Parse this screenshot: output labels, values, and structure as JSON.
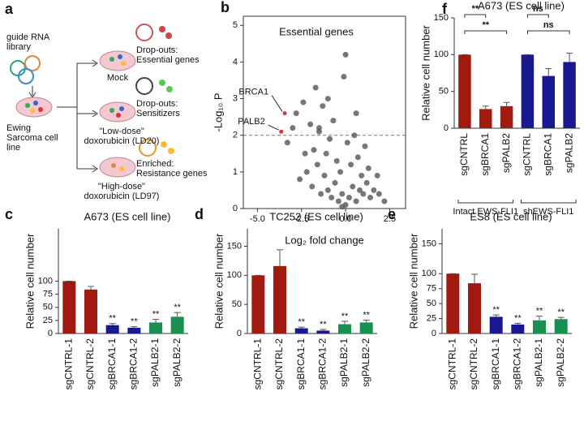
{
  "diagram": {
    "panel": "a",
    "library": "guide RNA library",
    "cell_line": "Ewing Sarcoma cell line",
    "conditions": [
      "Mock",
      "\"Low-dose\" doxorubicin (LD20)",
      "\"High-dose\" doxorubicin (LD97)"
    ],
    "outcomes": [
      "Drop-outs: Essential genes",
      "Drop-outs: Sensitizers",
      "Enriched: Resistance genes"
    ]
  },
  "chart_data": [
    {
      "type": "scatter",
      "panel": "b",
      "title": "Essential genes",
      "xlabel": "Log₂ fold change",
      "ylabel": "-Log₁₀ P",
      "xlim": [
        -5.8,
        3.4
      ],
      "ylim": [
        0,
        5.25
      ],
      "xticks": [
        {
          "value": -5,
          "label": "-5.0"
        },
        {
          "value": -2.5,
          "label": "-2.5"
        },
        {
          "value": 0,
          "label": "0.0"
        },
        {
          "value": 2.5,
          "label": "2.5"
        }
      ],
      "yticks": [
        0,
        1,
        2,
        3,
        4,
        5
      ],
      "hline": 2,
      "series": [
        {
          "color": "#555555",
          "x": [
            -2.6,
            -2.2,
            -1.9,
            -1.6,
            -1.4,
            -1.2,
            -1.0,
            -0.8,
            -0.6,
            -0.4,
            -0.2,
            0,
            0.2,
            0.4,
            0.6,
            0.8,
            1.0,
            1.2,
            1.4,
            1.6,
            1.9,
            2.2,
            -1.8,
            -1.5,
            -1.1,
            -0.9,
            -0.5,
            -0.3,
            0.1,
            0.3,
            0.7,
            0.9,
            1.3,
            -2.0,
            -1.3,
            -0.7,
            0.5,
            1.1,
            -3.0,
            -2.8,
            -2.4,
            -1.7,
            -1.0,
            0.0,
            0.6,
            -0.1,
            -1.5,
            -2.3,
            -3.3,
            1.8,
            -0.2
          ],
          "values": [
            0.8,
            1.0,
            0.6,
            1.2,
            0.4,
            0.9,
            0.5,
            0.3,
            0.7,
            0.2,
            0.4,
            0.1,
            0.3,
            0.6,
            0.2,
            0.5,
            0.4,
            0.7,
            0.3,
            0.5,
            0.4,
            0.2,
            1.6,
            2.1,
            1.5,
            1.9,
            1.3,
            1.0,
            1.8,
            1.2,
            1.4,
            0.9,
            1.1,
            2.3,
            2.8,
            2.4,
            2.0,
            1.7,
            2.2,
            2.6,
            2.9,
            3.3,
            3.0,
            4.2,
            2.6,
            3.6,
            2.2,
            1.5,
            1.8,
            0.9,
            0.05
          ]
        },
        {
          "color": "#e03030",
          "x": [
            -3.45,
            -3.65
          ],
          "values": [
            2.6,
            2.1
          ],
          "point_labels": [
            "BRCA1",
            "PALB2"
          ]
        }
      ]
    },
    {
      "type": "bar",
      "panel": "f",
      "title": "A673 (ES cell line)",
      "ylabel": "Relative cell number",
      "categories": [
        "sgCNTRL",
        "sgBRCA1",
        "sgPALB2",
        "sgCNTRL",
        "sgBRCA1",
        "sgPALB2"
      ],
      "values": [
        100,
        26,
        30,
        100,
        71,
        90
      ],
      "errors": [
        0,
        4,
        5,
        0,
        10,
        12
      ],
      "colors": [
        "#a01a10",
        "#a01a10",
        "#a01a10",
        "#1a1a90",
        "#1a1a90",
        "#1a1a90"
      ],
      "ylim": [
        0,
        150
      ],
      "yticks": [
        0,
        50,
        100,
        150
      ],
      "comparisons": [
        {
          "pair": [
            0,
            1
          ],
          "label": "**"
        },
        {
          "pair": [
            0,
            2
          ],
          "label": "**"
        },
        {
          "pair": [
            3,
            4
          ],
          "label": "ns"
        },
        {
          "pair": [
            3,
            5
          ],
          "label": "ns"
        }
      ],
      "groups": [
        {
          "label": "Intact EWS-FLI1",
          "span": [
            0,
            2
          ]
        },
        {
          "label": "shEWS-FLI1",
          "span": [
            3,
            5
          ]
        }
      ]
    },
    {
      "type": "bar",
      "panel": "c",
      "title": "A673 (ES cell line)",
      "ylabel": "Relative cell number",
      "categories": [
        "sgCNTRL-1",
        "sgCNTRL-2",
        "sgBRCA1-1",
        "sgBRCA1-2",
        "sgPALB2-1",
        "sgPALB2-2"
      ],
      "values": [
        100,
        84,
        16,
        11,
        21,
        32
      ],
      "errors": [
        0,
        6,
        3,
        2,
        6,
        8
      ],
      "colors": [
        "#a01a10",
        "#a01a10",
        "#1a1a90",
        "#1a1a90",
        "#1a9050",
        "#1a9050"
      ],
      "ylim": [
        0,
        200
      ],
      "yticks": [
        0,
        25,
        50,
        75,
        100
      ],
      "significance": [
        null,
        null,
        "**",
        "**",
        "**",
        "**"
      ]
    },
    {
      "type": "bar",
      "panel": "d",
      "title": "TC252 (ES cell line)",
      "ylabel": "Relative cell number",
      "categories": [
        "sgCNTRL-1",
        "sgCNTRL-2",
        "sgBRCA1-1",
        "sgBRCA1-2",
        "sgPALB2-1",
        "sgPALB2-2"
      ],
      "values": [
        100,
        116,
        9,
        5,
        16,
        19
      ],
      "errors": [
        0,
        28,
        2,
        2,
        5,
        4
      ],
      "colors": [
        "#a01a10",
        "#a01a10",
        "#1a1a90",
        "#1a1a90",
        "#1a9050",
        "#1a9050"
      ],
      "ylim": [
        0,
        180
      ],
      "yticks": [
        0,
        50,
        100,
        150
      ],
      "significance": [
        null,
        null,
        "**",
        "**",
        "**",
        "**"
      ]
    },
    {
      "type": "bar",
      "panel": "e",
      "title": "ES8 (ES cell line)",
      "ylabel": "Relative cell number",
      "categories": [
        "sgCNTRL-1",
        "sgCNTRL-2",
        "sgBRCA1-1",
        "sgBRCA1-2",
        "sgPALB2-1",
        "sgPALB2-2"
      ],
      "values": [
        100,
        84,
        28,
        15,
        22,
        24
      ],
      "errors": [
        0,
        15,
        3,
        2,
        7,
        3
      ],
      "colors": [
        "#a01a10",
        "#a01a10",
        "#1a1a90",
        "#1a1a90",
        "#1a9050",
        "#1a9050"
      ],
      "ylim": [
        0,
        175
      ],
      "yticks": [
        0,
        25,
        50,
        75,
        100,
        150
      ],
      "significance": [
        null,
        null,
        "**",
        "**",
        "**",
        "**"
      ]
    }
  ]
}
